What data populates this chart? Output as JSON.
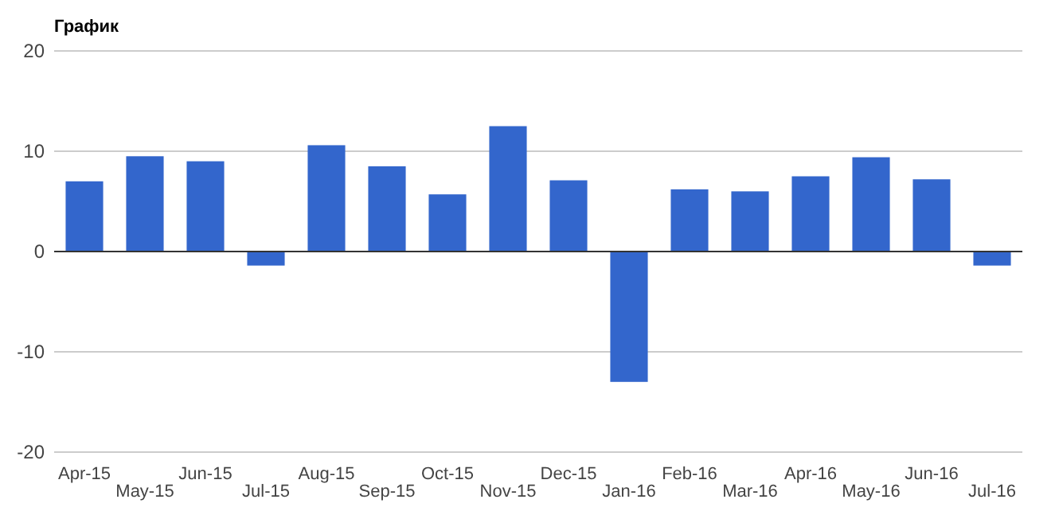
{
  "chart_data": {
    "type": "bar",
    "title": "График",
    "categories": [
      "Apr-15",
      "May-15",
      "Jun-15",
      "Jul-15",
      "Aug-15",
      "Sep-15",
      "Oct-15",
      "Nov-15",
      "Dec-15",
      "Jan-16",
      "Feb-16",
      "Mar-16",
      "Apr-16",
      "May-16",
      "Jun-16",
      "Jul-16"
    ],
    "values": [
      7.0,
      9.5,
      9.0,
      -1.4,
      10.6,
      8.5,
      5.7,
      12.5,
      7.1,
      -13.0,
      6.2,
      6.0,
      7.5,
      9.4,
      7.2,
      -1.4
    ],
    "color": "#3366cc",
    "ylim": [
      -20,
      20
    ],
    "yticks": [
      -20,
      -10,
      0,
      10,
      20
    ],
    "grid": true
  }
}
